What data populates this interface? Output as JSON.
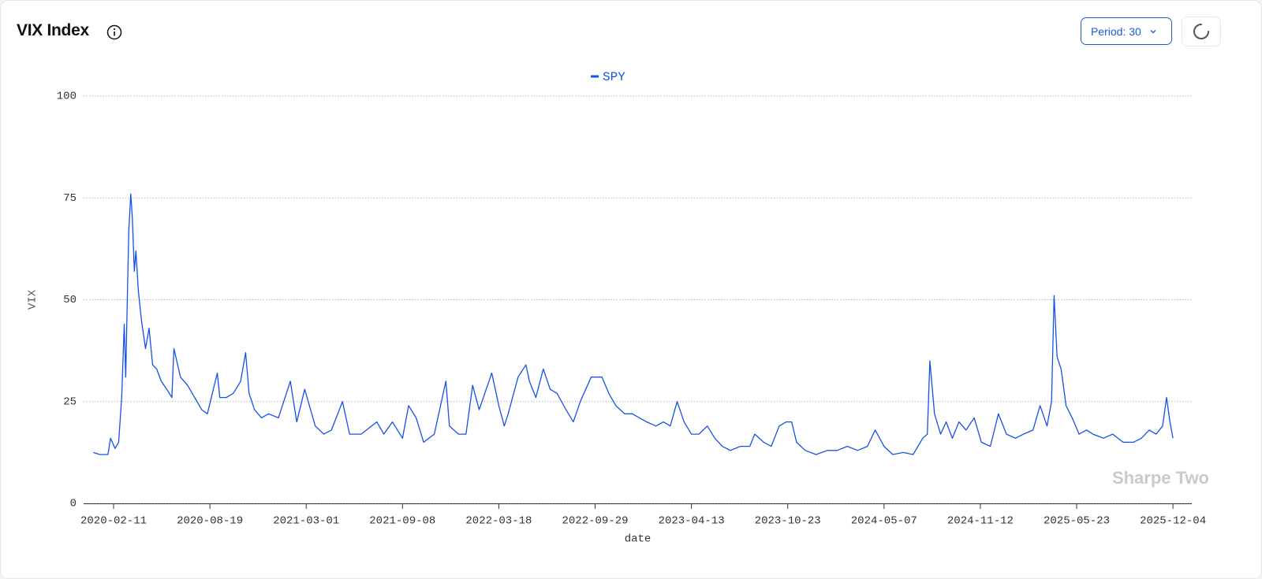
{
  "header": {
    "title": "VIX Index",
    "period": "Period: 30"
  },
  "chart_data": {
    "type": "line",
    "x_label": "date",
    "y_label": "VIX",
    "watermark": "Sharpe Two",
    "ylim": [
      0,
      100
    ],
    "yticks": [
      0,
      25,
      50,
      75,
      100
    ],
    "grid": true,
    "legend": "top",
    "xticks": [
      "2020-02-11",
      "2020-08-19",
      "2021-03-01",
      "2021-09-08",
      "2022-03-18",
      "2022-09-29",
      "2023-04-13",
      "2023-10-23",
      "2024-05-07",
      "2024-11-12",
      "2025-05-23",
      "2025-12-04"
    ],
    "x": [
      "2020-01-02",
      "2020-01-15",
      "2020-01-31",
      "2020-02-05",
      "2020-02-14",
      "2020-02-21",
      "2020-02-27",
      "2020-03-03",
      "2020-03-06",
      "2020-03-09",
      "2020-03-12",
      "2020-03-16",
      "2020-03-19",
      "2020-03-23",
      "2020-03-26",
      "2020-03-31",
      "2020-04-06",
      "2020-04-14",
      "2020-04-21",
      "2020-04-28",
      "2020-05-06",
      "2020-05-15",
      "2020-05-26",
      "2020-06-05",
      "2020-06-09",
      "2020-06-22",
      "2020-07-06",
      "2020-07-20",
      "2020-08-03",
      "2020-08-14",
      "2020-08-24",
      "2020-09-03",
      "2020-09-08",
      "2020-09-21",
      "2020-10-05",
      "2020-10-20",
      "2020-10-30",
      "2020-11-06",
      "2020-11-17",
      "2020-12-01",
      "2020-12-15",
      "2021-01-04",
      "2021-01-28",
      "2021-02-10",
      "2021-02-26",
      "2021-03-05",
      "2021-03-19",
      "2021-04-05",
      "2021-04-20",
      "2021-05-12",
      "2021-05-26",
      "2021-06-18",
      "2021-07-19",
      "2021-08-02",
      "2021-08-19",
      "2021-09-08",
      "2021-09-20",
      "2021-10-05",
      "2021-10-20",
      "2021-11-10",
      "2021-12-03",
      "2021-12-10",
      "2021-12-28",
      "2022-01-12",
      "2022-01-25",
      "2022-02-07",
      "2022-03-04",
      "2022-03-18",
      "2022-03-29",
      "2022-04-06",
      "2022-04-26",
      "2022-05-12",
      "2022-05-19",
      "2022-06-01",
      "2022-06-16",
      "2022-06-30",
      "2022-07-14",
      "2022-08-01",
      "2022-08-16",
      "2022-08-30",
      "2022-09-21",
      "2022-10-13",
      "2022-10-27",
      "2022-11-10",
      "2022-11-28",
      "2022-12-14",
      "2022-12-28",
      "2023-01-12",
      "2023-01-31",
      "2023-02-15",
      "2023-03-01",
      "2023-03-15",
      "2023-03-29",
      "2023-04-13",
      "2023-04-28",
      "2023-05-15",
      "2023-05-30",
      "2023-06-14",
      "2023-06-30",
      "2023-07-20",
      "2023-08-08",
      "2023-08-18",
      "2023-09-05",
      "2023-09-20",
      "2023-10-06",
      "2023-10-20",
      "2023-10-31",
      "2023-11-10",
      "2023-11-28",
      "2023-12-20",
      "2024-01-12",
      "2024-02-01",
      "2024-02-22",
      "2024-03-14",
      "2024-04-03",
      "2024-04-19",
      "2024-05-07",
      "2024-05-24",
      "2024-06-14",
      "2024-07-03",
      "2024-07-22",
      "2024-07-31",
      "2024-08-05",
      "2024-08-14",
      "2024-08-26",
      "2024-09-06",
      "2024-09-18",
      "2024-10-01",
      "2024-10-15",
      "2024-10-31",
      "2024-11-14",
      "2024-12-02",
      "2024-12-18",
      "2025-01-03",
      "2025-01-21",
      "2025-02-06",
      "2025-02-25",
      "2025-03-11",
      "2025-03-25",
      "2025-04-03",
      "2025-04-08",
      "2025-04-14",
      "2025-04-22",
      "2025-05-02",
      "2025-05-14",
      "2025-05-28",
      "2025-06-12",
      "2025-06-25",
      "2025-07-16",
      "2025-08-04",
      "2025-08-25",
      "2025-09-15",
      "2025-10-01",
      "2025-10-17",
      "2025-10-31",
      "2025-11-13",
      "2025-11-21",
      "2025-11-28",
      "2025-12-04"
    ],
    "series": [
      {
        "name": "SPY",
        "color": "#1550e8",
        "values": [
          12.5,
          12,
          12,
          16,
          13.5,
          15,
          26,
          44,
          31,
          50,
          67,
          76,
          70,
          57,
          62,
          52,
          45,
          38,
          43,
          34,
          33,
          30,
          28,
          26,
          38,
          31,
          29,
          26,
          23,
          22,
          27,
          32,
          26,
          26,
          27,
          30,
          37,
          27,
          23,
          21,
          22,
          21,
          30,
          20,
          28,
          25,
          19,
          17,
          18,
          25,
          17,
          17,
          20,
          17,
          20,
          16,
          24,
          21,
          15,
          17,
          30,
          19,
          17,
          17,
          29,
          23,
          32,
          24,
          19,
          22,
          31,
          34,
          30,
          26,
          33,
          28,
          27,
          23,
          20,
          25,
          31,
          31,
          27,
          24,
          22,
          22,
          21,
          20,
          19,
          20,
          19,
          25,
          20,
          17,
          17,
          19,
          16,
          14,
          13,
          14,
          14,
          17,
          15,
          14,
          19,
          20,
          20,
          15,
          13,
          12,
          13,
          13,
          14,
          13,
          14,
          18,
          14,
          12,
          12.5,
          12,
          16,
          17,
          35,
          22,
          17,
          20,
          16,
          20,
          18,
          21,
          15,
          14,
          22,
          17,
          16,
          17,
          18,
          24,
          19,
          25,
          51,
          36,
          33,
          24,
          21,
          17,
          18,
          17,
          16,
          17,
          15,
          15,
          16,
          18,
          17,
          19,
          26,
          20,
          16
        ]
      }
    ]
  }
}
